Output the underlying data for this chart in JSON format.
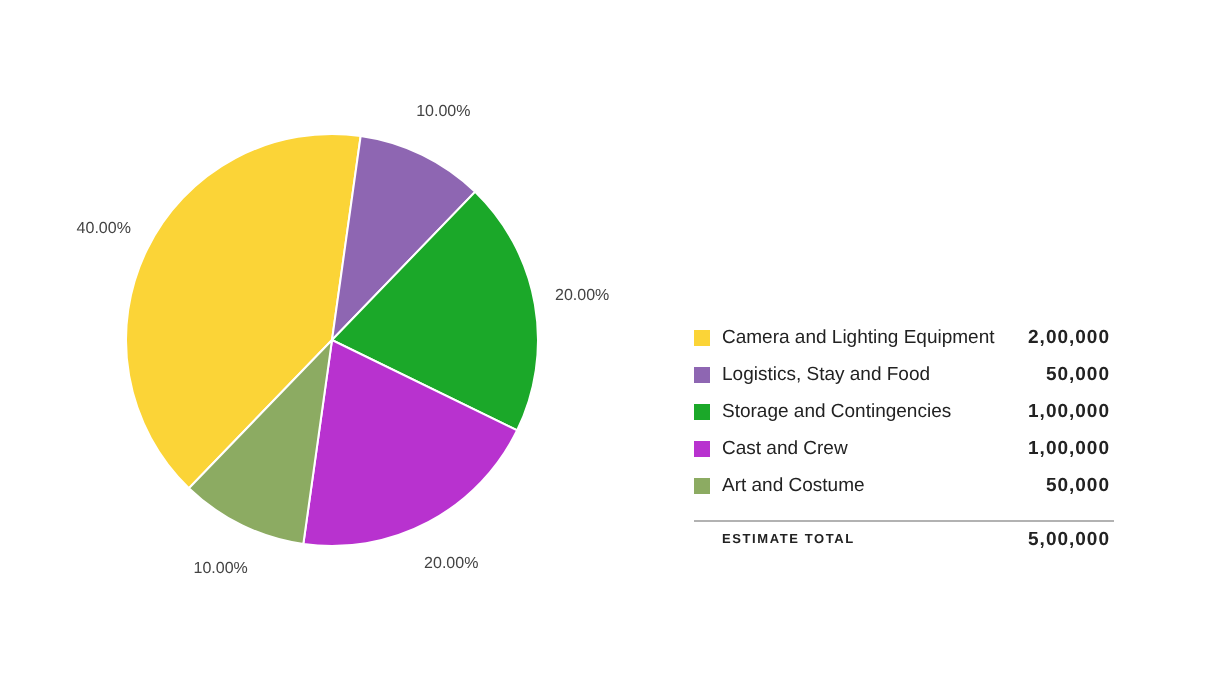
{
  "chart_data": {
    "type": "pie",
    "categories": [
      "Camera and Lighting Equipment",
      "Logistics, Stay and Food",
      "Storage and Contingencies",
      "Cast and Crew",
      "Art and Costume"
    ],
    "values": [
      200000,
      50000,
      100000,
      100000,
      50000
    ],
    "colors": [
      "#fbd437",
      "#8e66b2",
      "#1ba829",
      "#b832cf",
      "#8cab62"
    ],
    "value_labels": [
      "2,00,000",
      "50,000",
      "1,00,000",
      "1,00,000",
      "50,000"
    ],
    "annotations": [
      "40.00%",
      "10.00%",
      "20.00%",
      "20.00%",
      "10.00%",
      "ESTIMATE TOTAL",
      "5,00,000"
    ],
    "legend": "right"
  }
}
